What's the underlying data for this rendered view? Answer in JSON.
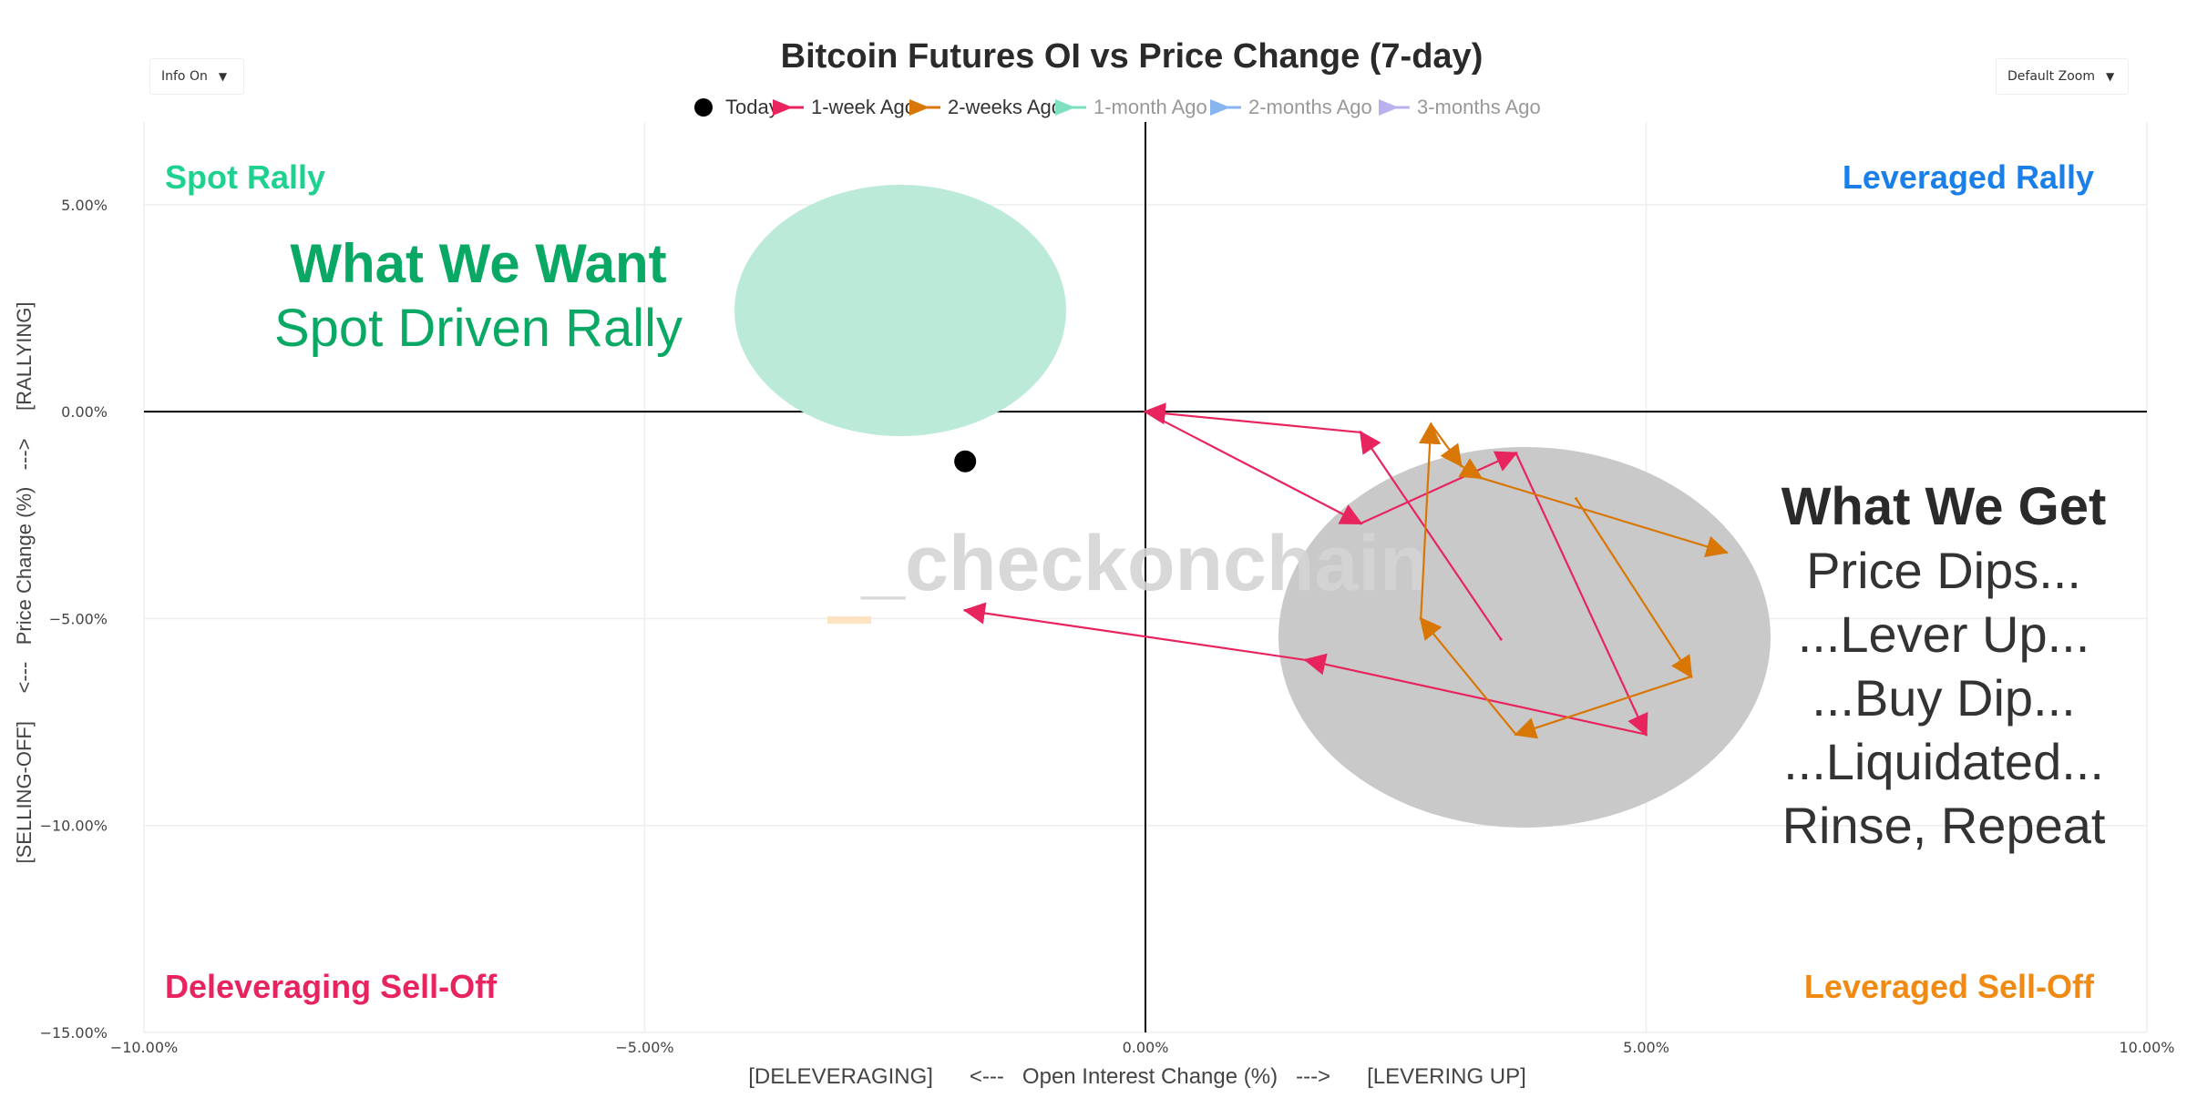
{
  "controls": {
    "info_toggle": "Info On",
    "zoom_select": "Default Zoom",
    "caret": "▼"
  },
  "watermark": "_checkonchain",
  "quadrants": {
    "top_left": "Spot Rally",
    "top_right": "Leveraged Rally",
    "bottom_left": "Deleveraging Sell-Off",
    "bottom_right": "Leveraged Sell-Off"
  },
  "annotations": {
    "want_title": "What We Want",
    "want_subtitle": "Spot Driven Rally",
    "get_title": "What We Get",
    "get_lines": [
      "Price Dips...",
      "...Lever Up...",
      "...Buy Dip...",
      "...Liquidated...",
      "Rinse, Repeat"
    ]
  },
  "colors": {
    "today": "#000000",
    "one_week": "#e8245f",
    "two_weeks": "#d97706",
    "one_month": "#7ee0c0",
    "two_months": "#86b5f0",
    "three_months": "#b9b0f0",
    "spot_rally": "#1fd18f",
    "leveraged_rally": "#1a7fe8",
    "deleveraging": "#e8245f",
    "leveraged_selloff": "#f08a12",
    "want_text": "#0aa865",
    "want_ellipse": "#bbead8",
    "get_ellipse": "#c9c9c9",
    "get_text": "#333333"
  },
  "chart_data": {
    "type": "scatter",
    "title": "Bitcoin Futures OI vs Price Change (7-day)",
    "xlabel": "[DELEVERAGING]      <---   Open Interest Change (%)   --->      [LEVERING UP]",
    "ylabel": "[SELLING-OFF]     <---   Price Change (%)   --->     [RALLYING]",
    "xlim": [
      -10,
      10
    ],
    "ylim": [
      -15,
      7
    ],
    "x_ticks": [
      -10,
      -5,
      0,
      5,
      10
    ],
    "x_tick_labels": [
      "−10.00%",
      "−5.00%",
      "0.00%",
      "5.00%",
      "10.00%"
    ],
    "y_ticks": [
      -15,
      -10,
      -5,
      0,
      5
    ],
    "y_tick_labels": [
      "−15.00%",
      "−10.00%",
      "−5.00%",
      "0.00%",
      "5.00%"
    ],
    "grid": true,
    "legend_position": "top-center",
    "legend": [
      {
        "name": "Today",
        "symbol": "dot",
        "active": true
      },
      {
        "name": "1-week Ago",
        "symbol": "arrow",
        "active": true
      },
      {
        "name": "2-weeks Ago",
        "symbol": "arrow",
        "active": true
      },
      {
        "name": "1-month Ago",
        "symbol": "arrow",
        "active": false
      },
      {
        "name": "2-months Ago",
        "symbol": "arrow",
        "active": false
      },
      {
        "name": "3-months Ago",
        "symbol": "arrow",
        "active": false
      }
    ],
    "today": {
      "x": -1.8,
      "y": -1.2
    },
    "series": [
      {
        "name": "1-week Ago",
        "points": [
          {
            "x": 3.55,
            "y": -5.5
          },
          {
            "x": 2.15,
            "y": -0.5
          },
          {
            "x": 0.0,
            "y": 0.0
          },
          {
            "x": 2.15,
            "y": -2.7
          },
          {
            "x": 3.7,
            "y": -1.0
          },
          {
            "x": 5.0,
            "y": -7.8
          },
          {
            "x": 1.6,
            "y": -6.0
          },
          {
            "x": -1.8,
            "y": -4.8
          }
        ]
      },
      {
        "name": "2-weeks Ago",
        "points": [
          {
            "x": 4.3,
            "y": -2.1
          },
          {
            "x": 5.45,
            "y": -6.4
          },
          {
            "x": 3.7,
            "y": -7.8
          },
          {
            "x": 2.75,
            "y": -5.0
          },
          {
            "x": 2.85,
            "y": -0.3
          },
          {
            "x": 3.15,
            "y": -1.3
          },
          {
            "x": 3.35,
            "y": -1.6
          },
          {
            "x": 5.8,
            "y": -3.4
          }
        ]
      }
    ]
  }
}
